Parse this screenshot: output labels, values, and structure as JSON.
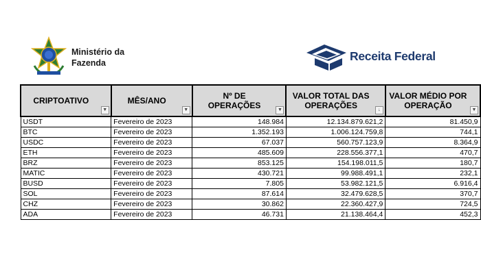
{
  "header": {
    "ministry_line1": "Ministério da",
    "ministry_line2": "Fazenda",
    "agency_name": "Receita Federal"
  },
  "table": {
    "columns": [
      {
        "label": "CRIPTOATIVO",
        "filter_icon": "dropdown-arrow"
      },
      {
        "label": "MÊS/ANO",
        "filter_icon": "filter-active"
      },
      {
        "label": "Nº DE OPERAÇÕES",
        "filter_icon": "dropdown-arrow"
      },
      {
        "label": "VALOR TOTAL DAS OPERAÇÕES",
        "filter_icon": "sort-descending"
      },
      {
        "label": "VALOR MÉDIO POR OPERAÇÃO",
        "filter_icon": "dropdown-arrow"
      }
    ],
    "rows": [
      [
        "USDT",
        "Fevereiro de 2023",
        "148.984",
        "12.134.879.621,2",
        "81.450,9"
      ],
      [
        "BTC",
        "Fevereiro de 2023",
        "1.352.193",
        "1.006.124.759,8",
        "744,1"
      ],
      [
        "USDC",
        "Fevereiro de 2023",
        "67.037",
        "560.757.123,9",
        "8.364,9"
      ],
      [
        "ETH",
        "Fevereiro de 2023",
        "485.609",
        "228.556.377,1",
        "470,7"
      ],
      [
        "BRZ",
        "Fevereiro de 2023",
        "853.125",
        "154.198.011,5",
        "180,7"
      ],
      [
        "MATIC",
        "Fevereiro de 2023",
        "430.721",
        "99.988.491,1",
        "232,1"
      ],
      [
        "BUSD",
        "Fevereiro de 2023",
        "7.805",
        "53.982.121,5",
        "6.916,4"
      ],
      [
        "SOL",
        "Fevereiro de 2023",
        "87.614",
        "32.479.628,5",
        "370,7"
      ],
      [
        "CHZ",
        "Fevereiro de 2023",
        "30.862",
        "22.360.427,9",
        "724,5"
      ],
      [
        "ADA",
        "Fevereiro de 2023",
        "46.731",
        "21.138.464,4",
        "452,3"
      ]
    ]
  },
  "colors": {
    "header_fill": "#d9d9d9",
    "brand_blue": "#1d3a6e",
    "coat_green": "#2e7d32",
    "coat_gold": "#e0b020"
  }
}
